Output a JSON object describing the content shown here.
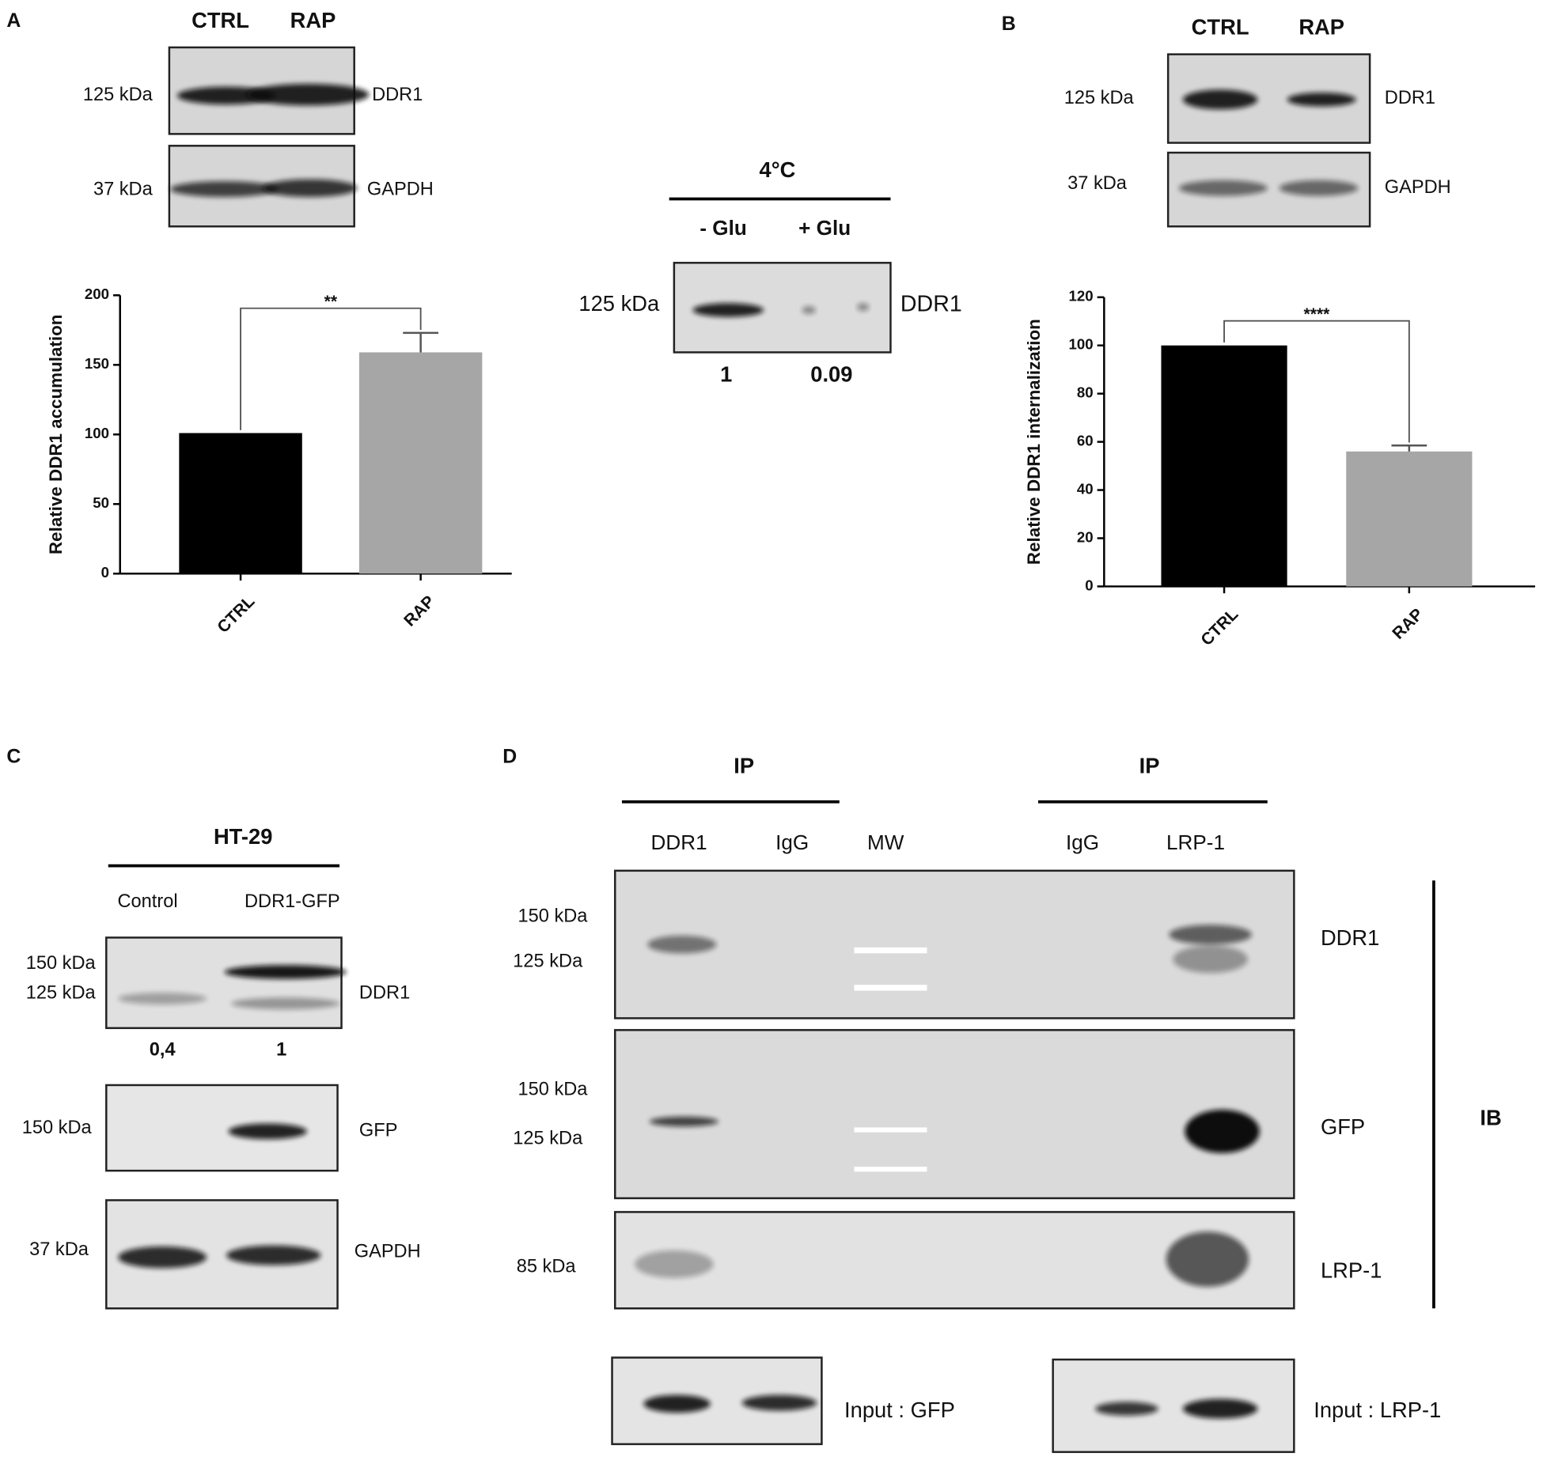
{
  "panels": {
    "a": {
      "label": "A",
      "lanes": [
        "CTRL",
        "RAP"
      ],
      "blots": [
        {
          "marker": "125 kDa",
          "target": "DDR1"
        },
        {
          "marker": "37 kDa",
          "target": "GAPDH"
        }
      ]
    },
    "middle": {
      "condition": "4°C",
      "lanes": [
        "- Glu",
        "+ Glu"
      ],
      "blot": {
        "marker": "125 kDa",
        "target": "DDR1"
      },
      "quantification": [
        "1",
        "0.09"
      ]
    },
    "b": {
      "label": "B",
      "lanes": [
        "CTRL",
        "RAP"
      ],
      "blots": [
        {
          "marker": "125 kDa",
          "target": "DDR1"
        },
        {
          "marker": "37 kDa",
          "target": "GAPDH"
        }
      ]
    },
    "c": {
      "label": "C",
      "cell_line": "HT-29",
      "lanes": [
        "Control",
        "DDR1-GFP"
      ],
      "blots": [
        {
          "markers": [
            "150 kDa",
            "125 kDa"
          ],
          "target": "DDR1"
        },
        {
          "markers": [
            "150 kDa"
          ],
          "target": "GFP"
        },
        {
          "markers": [
            "37 kDa"
          ],
          "target": "GAPDH"
        }
      ],
      "quantification": [
        "0,4",
        "1"
      ]
    },
    "d": {
      "label": "D",
      "ip_groups": [
        "IP",
        "IP"
      ],
      "lanes": [
        "DDR1",
        "IgG",
        "MW",
        "IgG",
        "LRP-1"
      ],
      "blots": [
        {
          "markers": [
            "150 kDa",
            "125 kDa"
          ],
          "target": "DDR1"
        },
        {
          "markers": [
            "150 kDa",
            "125 kDa"
          ],
          "target": "GFP"
        },
        {
          "markers": [
            "85 kDa"
          ],
          "target": "LRP-1"
        }
      ],
      "ib": "IB",
      "inputs": [
        "Input : GFP",
        "Input : LRP-1"
      ]
    }
  },
  "chart_data": [
    {
      "type": "bar",
      "ylabel": "Relative DDR1 accumulation",
      "categories": [
        "CTRL",
        "RAP"
      ],
      "values": [
        101,
        159
      ],
      "errors": [
        null,
        14
      ],
      "colors": [
        "#000000",
        "#a6a6a6"
      ],
      "ylim": [
        0,
        200
      ],
      "yticks": [
        0,
        50,
        100,
        150,
        200
      ],
      "significance": "**"
    },
    {
      "type": "bar",
      "ylabel": "Relative DDR1 internalization",
      "categories": [
        "CTRL",
        "RAP"
      ],
      "values": [
        100,
        56
      ],
      "errors": [
        null,
        2.5
      ],
      "colors": [
        "#000000",
        "#a6a6a6"
      ],
      "ylim": [
        0,
        120
      ],
      "yticks": [
        0,
        20,
        40,
        60,
        80,
        100,
        120
      ],
      "significance": "****"
    }
  ]
}
